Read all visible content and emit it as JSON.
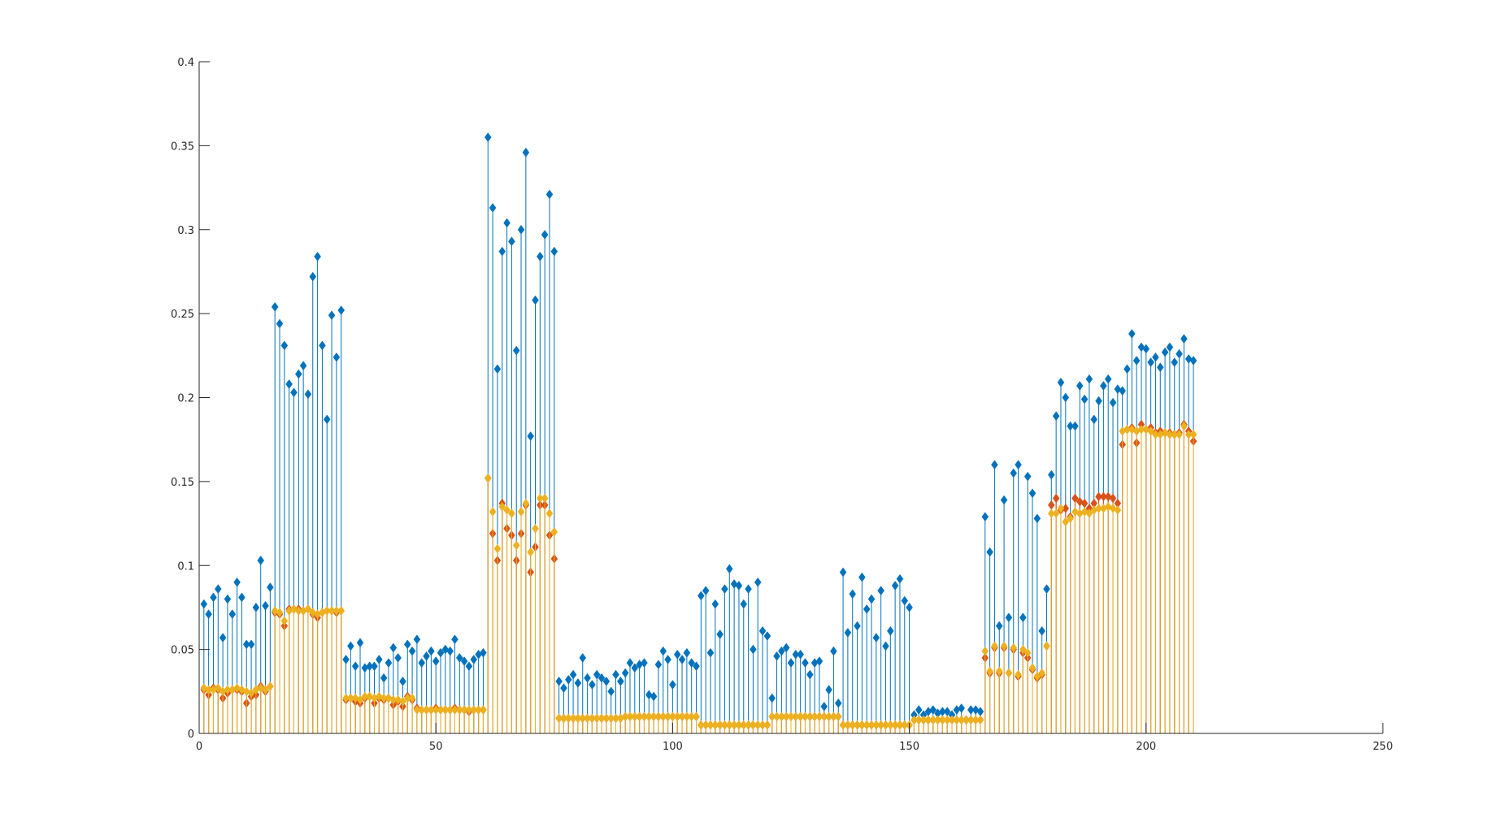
{
  "chart_data": {
    "type": "stem",
    "title": "",
    "xlabel": "",
    "ylabel": "",
    "xlim": [
      0,
      250
    ],
    "ylim": [
      0,
      0.4
    ],
    "xticks": [
      0,
      50,
      100,
      150,
      200,
      250
    ],
    "xtick_labels": [
      "0",
      "50",
      "100",
      "150",
      "200",
      "250"
    ],
    "yticks": [
      0,
      0.05,
      0.1,
      0.15,
      0.2,
      0.25,
      0.3,
      0.35,
      0.4
    ],
    "ytick_labels": [
      "0",
      "0.05",
      "0.1",
      "0.15",
      "0.2",
      "0.25",
      "0.3",
      "0.35",
      "0.4"
    ],
    "grid": false,
    "legend": "none",
    "marker": "diamond",
    "x": [
      1,
      2,
      3,
      4,
      5,
      6,
      7,
      8,
      9,
      10,
      11,
      12,
      13,
      14,
      15,
      16,
      17,
      18,
      19,
      20,
      21,
      22,
      23,
      24,
      25,
      26,
      27,
      28,
      29,
      30,
      31,
      32,
      33,
      34,
      35,
      36,
      37,
      38,
      39,
      40,
      41,
      42,
      43,
      44,
      45,
      46,
      47,
      48,
      49,
      50,
      51,
      52,
      53,
      54,
      55,
      56,
      57,
      58,
      59,
      60,
      61,
      62,
      63,
      64,
      65,
      66,
      67,
      68,
      69,
      70,
      71,
      72,
      73,
      74,
      75,
      76,
      77,
      78,
      79,
      80,
      81,
      82,
      83,
      84,
      85,
      86,
      87,
      88,
      89,
      90,
      91,
      92,
      93,
      94,
      95,
      96,
      97,
      98,
      99,
      100,
      101,
      102,
      103,
      104,
      105,
      106,
      107,
      108,
      109,
      110,
      111,
      112,
      113,
      114,
      115,
      116,
      117,
      118,
      119,
      120,
      121,
      122,
      123,
      124,
      125,
      126,
      127,
      128,
      129,
      130,
      131,
      132,
      133,
      134,
      135,
      136,
      137,
      138,
      139,
      140,
      141,
      142,
      143,
      144,
      145,
      146,
      147,
      148,
      149,
      150,
      151,
      152,
      153,
      154,
      155,
      156,
      157,
      158,
      159,
      160,
      161,
      162,
      163,
      164,
      165,
      166,
      167,
      168,
      169,
      170,
      171,
      172,
      173,
      174,
      175,
      176,
      177,
      178,
      179,
      180,
      181,
      182,
      183,
      184,
      185,
      186,
      187,
      188,
      189,
      190,
      191,
      192,
      193,
      194,
      195,
      196,
      197,
      198,
      199,
      200,
      201,
      202,
      203,
      204,
      205,
      206,
      207,
      208,
      209,
      210
    ],
    "series": [
      {
        "color": "#0072bd",
        "values": [
          0.077,
          0.071,
          0.081,
          0.086,
          0.057,
          0.08,
          0.071,
          0.09,
          0.081,
          0.053,
          0.053,
          0.075,
          0.103,
          0.076,
          0.087,
          0.254,
          0.244,
          0.231,
          0.208,
          0.203,
          0.214,
          0.219,
          0.202,
          0.272,
          0.284,
          0.231,
          0.187,
          0.249,
          0.224,
          0.252,
          0.044,
          0.052,
          0.04,
          0.054,
          0.039,
          0.04,
          0.04,
          0.044,
          0.033,
          0.042,
          0.051,
          0.045,
          0.031,
          0.053,
          0.049,
          0.056,
          0.042,
          0.046,
          0.049,
          0.043,
          0.048,
          0.05,
          0.049,
          0.056,
          0.045,
          0.043,
          0.04,
          0.044,
          0.047,
          0.048,
          0.355,
          0.313,
          0.217,
          0.287,
          0.304,
          0.293,
          0.228,
          0.3,
          0.346,
          0.177,
          0.258,
          0.284,
          0.297,
          0.321,
          0.287,
          0.031,
          0.027,
          0.032,
          0.035,
          0.03,
          0.045,
          0.033,
          0.029,
          0.035,
          0.033,
          0.031,
          0.025,
          0.035,
          0.031,
          0.036,
          0.042,
          0.039,
          0.041,
          0.042,
          0.023,
          0.022,
          0.041,
          0.049,
          0.044,
          0.029,
          0.047,
          0.044,
          0.048,
          0.042,
          0.04,
          0.082,
          0.085,
          0.048,
          0.077,
          0.059,
          0.086,
          0.098,
          0.089,
          0.088,
          0.077,
          0.086,
          0.05,
          0.09,
          0.061,
          0.058,
          0.021,
          0.046,
          0.049,
          0.051,
          0.042,
          0.047,
          0.047,
          0.042,
          0.035,
          0.042,
          0.043,
          0.016,
          0.026,
          0.049,
          0.018,
          0.096,
          0.06,
          0.083,
          0.064,
          0.093,
          0.074,
          0.08,
          0.057,
          0.085,
          0.052,
          0.061,
          0.088,
          0.092,
          0.079,
          0.075,
          0.011,
          0.014,
          0.011,
          0.013,
          0.014,
          0.012,
          0.013,
          0.013,
          0.011,
          0.014,
          0.015,
          0.008,
          0.014,
          0.014,
          0.013,
          0.129,
          0.108,
          0.16,
          0.064,
          0.139,
          0.069,
          0.155,
          0.16,
          0.069,
          0.153,
          0.143,
          0.128,
          0.061,
          0.086,
          0.154,
          0.189,
          0.209,
          0.2,
          0.183,
          0.183,
          0.207,
          0.199,
          0.211,
          0.187,
          0.198,
          0.207,
          0.211,
          0.197,
          0.205,
          0.204,
          0.217,
          0.238,
          0.222,
          0.23,
          0.229,
          0.221,
          0.224,
          0.218,
          0.227,
          0.23,
          0.221,
          0.226,
          0.235,
          0.223,
          0.222
        ]
      },
      {
        "color": "#d95319",
        "values": [
          0.026,
          0.023,
          0.027,
          0.026,
          0.021,
          0.024,
          0.026,
          0.026,
          0.025,
          0.018,
          0.022,
          0.023,
          0.028,
          0.025,
          0.028,
          0.072,
          0.071,
          0.064,
          0.074,
          0.074,
          0.074,
          0.073,
          0.074,
          0.071,
          0.069,
          0.072,
          0.073,
          0.073,
          0.072,
          0.073,
          0.02,
          0.021,
          0.019,
          0.018,
          0.021,
          0.022,
          0.018,
          0.021,
          0.02,
          0.021,
          0.017,
          0.019,
          0.016,
          0.022,
          0.02,
          0.015,
          0.014,
          0.014,
          0.014,
          0.015,
          0.014,
          0.014,
          0.014,
          0.015,
          0.014,
          0.014,
          0.013,
          0.014,
          0.014,
          0.014,
          0.152,
          0.119,
          0.103,
          0.137,
          0.122,
          0.118,
          0.103,
          0.119,
          0.136,
          0.096,
          0.111,
          0.136,
          0.136,
          0.118,
          0.104,
          0.009,
          0.009,
          0.009,
          0.009,
          0.009,
          0.009,
          0.009,
          0.009,
          0.009,
          0.009,
          0.009,
          0.009,
          0.009,
          0.009,
          0.01,
          0.01,
          0.01,
          0.01,
          0.01,
          0.01,
          0.01,
          0.01,
          0.01,
          0.01,
          0.01,
          0.01,
          0.01,
          0.01,
          0.01,
          0.01,
          0.005,
          0.005,
          0.005,
          0.005,
          0.005,
          0.005,
          0.005,
          0.005,
          0.005,
          0.005,
          0.005,
          0.005,
          0.005,
          0.005,
          0.005,
          0.01,
          0.01,
          0.01,
          0.01,
          0.01,
          0.01,
          0.01,
          0.01,
          0.01,
          0.01,
          0.01,
          0.01,
          0.01,
          0.01,
          0.01,
          0.005,
          0.005,
          0.005,
          0.005,
          0.005,
          0.005,
          0.005,
          0.005,
          0.005,
          0.005,
          0.005,
          0.005,
          0.005,
          0.005,
          0.005,
          0.008,
          0.008,
          0.008,
          0.008,
          0.008,
          0.008,
          0.008,
          0.008,
          0.008,
          0.008,
          0.008,
          0.008,
          0.008,
          0.008,
          0.008,
          0.045,
          0.036,
          0.051,
          0.036,
          0.051,
          0.036,
          0.05,
          0.034,
          0.048,
          0.045,
          0.038,
          0.033,
          0.035,
          0.052,
          0.136,
          0.14,
          0.133,
          0.134,
          0.129,
          0.14,
          0.138,
          0.137,
          0.134,
          0.137,
          0.141,
          0.141,
          0.141,
          0.14,
          0.137,
          0.172,
          0.181,
          0.182,
          0.173,
          0.184,
          0.181,
          0.182,
          0.179,
          0.18,
          0.179,
          0.179,
          0.178,
          0.179,
          0.184,
          0.18,
          0.174
        ]
      },
      {
        "color": "#edb120",
        "values": [
          0.027,
          0.026,
          0.026,
          0.027,
          0.025,
          0.026,
          0.026,
          0.027,
          0.026,
          0.025,
          0.024,
          0.026,
          0.027,
          0.026,
          0.028,
          0.073,
          0.072,
          0.067,
          0.073,
          0.074,
          0.073,
          0.073,
          0.074,
          0.072,
          0.071,
          0.072,
          0.073,
          0.073,
          0.073,
          0.073,
          0.021,
          0.021,
          0.021,
          0.02,
          0.022,
          0.022,
          0.021,
          0.022,
          0.021,
          0.021,
          0.02,
          0.02,
          0.019,
          0.021,
          0.021,
          0.014,
          0.014,
          0.014,
          0.014,
          0.014,
          0.014,
          0.014,
          0.014,
          0.014,
          0.014,
          0.014,
          0.014,
          0.014,
          0.014,
          0.014,
          0.152,
          0.132,
          0.11,
          0.135,
          0.133,
          0.131,
          0.112,
          0.132,
          0.137,
          0.108,
          0.122,
          0.14,
          0.14,
          0.131,
          0.12,
          0.009,
          0.009,
          0.009,
          0.009,
          0.009,
          0.009,
          0.009,
          0.009,
          0.009,
          0.009,
          0.009,
          0.009,
          0.009,
          0.009,
          0.01,
          0.01,
          0.01,
          0.01,
          0.01,
          0.01,
          0.01,
          0.01,
          0.01,
          0.01,
          0.01,
          0.01,
          0.01,
          0.01,
          0.01,
          0.01,
          0.005,
          0.005,
          0.005,
          0.005,
          0.005,
          0.005,
          0.005,
          0.005,
          0.005,
          0.005,
          0.005,
          0.005,
          0.005,
          0.005,
          0.005,
          0.01,
          0.01,
          0.01,
          0.01,
          0.01,
          0.01,
          0.01,
          0.01,
          0.01,
          0.01,
          0.01,
          0.01,
          0.01,
          0.01,
          0.01,
          0.005,
          0.005,
          0.005,
          0.005,
          0.005,
          0.005,
          0.005,
          0.005,
          0.005,
          0.005,
          0.005,
          0.005,
          0.005,
          0.005,
          0.005,
          0.008,
          0.008,
          0.008,
          0.008,
          0.008,
          0.008,
          0.008,
          0.008,
          0.008,
          0.008,
          0.008,
          0.008,
          0.008,
          0.008,
          0.008,
          0.049,
          0.037,
          0.052,
          0.037,
          0.052,
          0.036,
          0.051,
          0.035,
          0.05,
          0.048,
          0.039,
          0.034,
          0.036,
          0.052,
          0.131,
          0.131,
          0.134,
          0.126,
          0.128,
          0.132,
          0.131,
          0.132,
          0.131,
          0.133,
          0.134,
          0.134,
          0.135,
          0.134,
          0.133,
          0.18,
          0.181,
          0.181,
          0.18,
          0.181,
          0.181,
          0.18,
          0.178,
          0.178,
          0.179,
          0.178,
          0.178,
          0.178,
          0.183,
          0.178,
          0.178
        ]
      }
    ]
  }
}
